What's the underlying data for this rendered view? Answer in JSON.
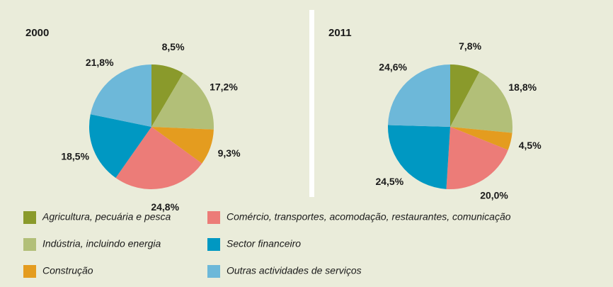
{
  "legend": {
    "categories": [
      "Agricultura, pecuária e pesca",
      "Indústria, incluindo energia",
      "Construção",
      "Comércio, transportes, acomodação, restaurantes, comunicação",
      "Sector financeiro",
      "Outras actividades de serviços"
    ],
    "colors": [
      "#8a9a2b",
      "#b2bf78",
      "#e49c1f",
      "#ec7c78",
      "#0098c2",
      "#6db8d9"
    ]
  },
  "chart_data": [
    {
      "type": "pie",
      "title": "2000",
      "values": [
        8.5,
        17.2,
        9.3,
        24.8,
        18.5,
        21.8
      ],
      "value_labels": [
        "8,5%",
        "17,2%",
        "9,3%",
        "24,8%",
        "18,5%",
        "21,8%"
      ]
    },
    {
      "type": "pie",
      "title": "2011",
      "values": [
        7.8,
        18.8,
        4.5,
        20.0,
        24.5,
        24.6
      ],
      "value_labels": [
        "7,8%",
        "18,8%",
        "4,5%",
        "20,0%",
        "24,5%",
        "24,6%"
      ]
    }
  ]
}
